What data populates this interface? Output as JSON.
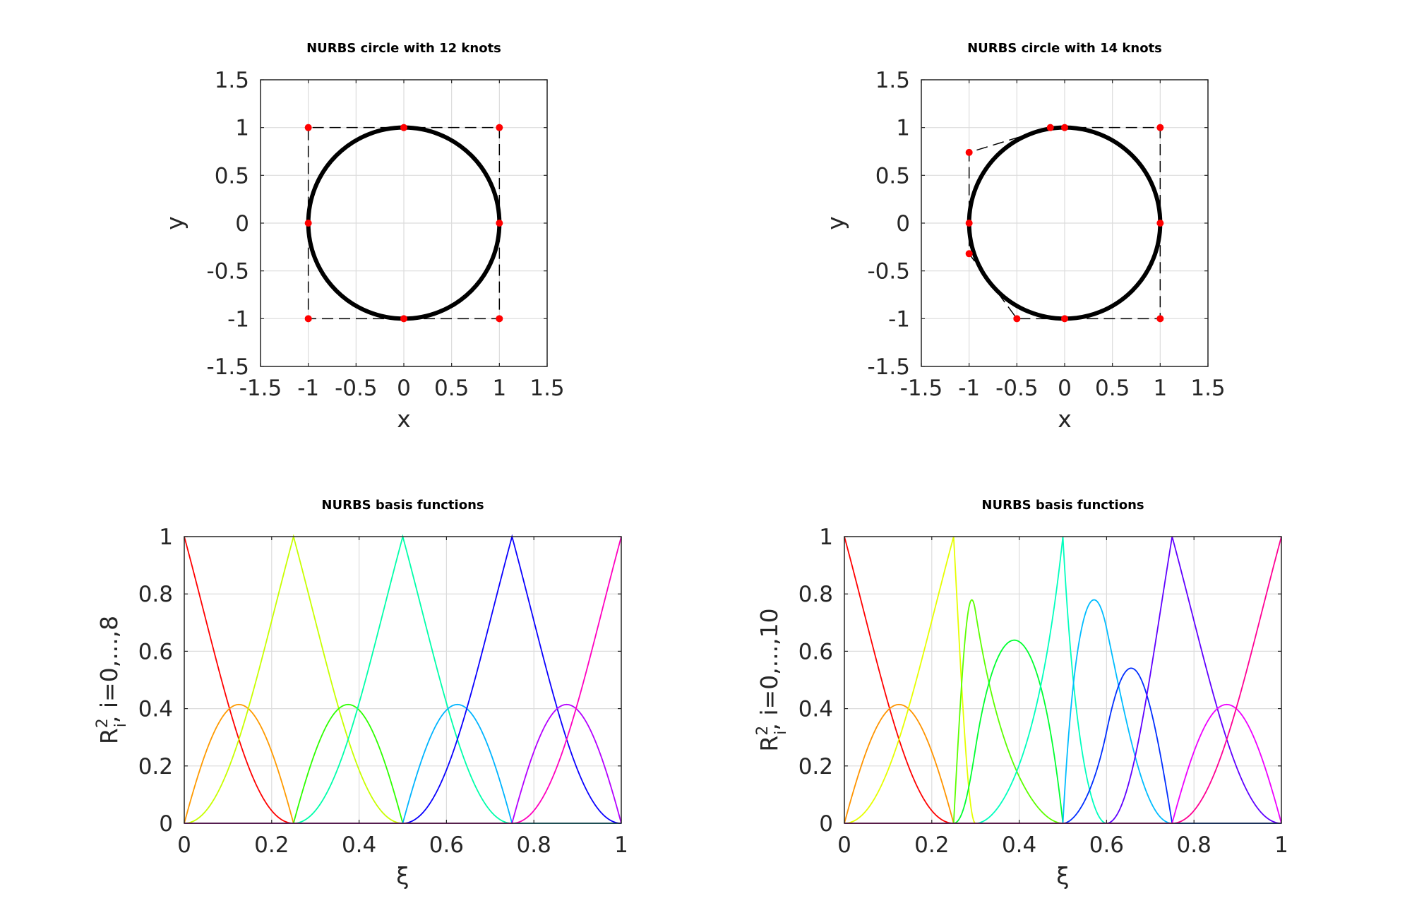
{
  "chart_data": [
    {
      "type": "line",
      "title": "NURBS circle with 12 knots",
      "xlabel": "x",
      "ylabel": "y",
      "xlim": [
        -1.5,
        1.5
      ],
      "ylim": [
        -1.5,
        1.5
      ],
      "xticks": [
        -1.5,
        -1,
        -0.5,
        0,
        0.5,
        1,
        1.5
      ],
      "yticks": [
        -1.5,
        -1,
        -0.5,
        0,
        0.5,
        1,
        1.5
      ],
      "xtick_labels": [
        "-1.5",
        "-1",
        "-0.5",
        "0",
        "0.5",
        "1",
        "1.5"
      ],
      "ytick_labels": [
        "-1.5",
        "-1",
        "-0.5",
        "0",
        "0.5",
        "1",
        "1.5"
      ],
      "grid": true,
      "curve": {
        "shape": "circle",
        "center": [
          0,
          0
        ],
        "radius": 1,
        "color": "#000000"
      },
      "control_polygon": {
        "x": [
          1,
          1,
          0,
          -1,
          -1,
          -1,
          0,
          1,
          1
        ],
        "y": [
          0,
          1,
          1,
          1,
          0,
          -1,
          -1,
          -1,
          0
        ],
        "style": "dashed",
        "color": "#000000"
      },
      "control_points": {
        "x": [
          1,
          1,
          0,
          -1,
          -1,
          -1,
          0,
          1
        ],
        "y": [
          0,
          1,
          1,
          1,
          0,
          -1,
          -1,
          -1
        ],
        "color": "#ff0000"
      }
    },
    {
      "type": "line",
      "title": "NURBS circle with 14 knots",
      "xlabel": "x",
      "ylabel": "y",
      "xlim": [
        -1.5,
        1.5
      ],
      "ylim": [
        -1.5,
        1.5
      ],
      "xticks": [
        -1.5,
        -1,
        -0.5,
        0,
        0.5,
        1,
        1.5
      ],
      "yticks": [
        -1.5,
        -1,
        -0.5,
        0,
        0.5,
        1,
        1.5
      ],
      "xtick_labels": [
        "-1.5",
        "-1",
        "-0.5",
        "0",
        "0.5",
        "1",
        "1.5"
      ],
      "ytick_labels": [
        "-1.5",
        "-1",
        "-0.5",
        "0",
        "0.5",
        "1",
        "1.5"
      ],
      "grid": true,
      "curve": {
        "shape": "circle",
        "center": [
          0,
          0
        ],
        "radius": 1,
        "color": "#000000"
      },
      "control_polygon": {
        "x": [
          1,
          1,
          0,
          -0.15,
          -1,
          -1,
          -1,
          -0.5,
          0,
          1,
          1
        ],
        "y": [
          0,
          1,
          1,
          1,
          0.74,
          0,
          -0.32,
          -1,
          -1,
          -1,
          0
        ],
        "style": "dashed",
        "color": "#000000"
      },
      "control_points": {
        "x": [
          1,
          1,
          0,
          -0.15,
          -1,
          -1,
          -1,
          -0.5,
          0,
          1
        ],
        "y": [
          0,
          1,
          1,
          1,
          0.74,
          0,
          -0.32,
          -1,
          -1,
          -1
        ],
        "color": "#ff0000"
      }
    },
    {
      "type": "line",
      "title": "NURBS basis functions",
      "xlabel": "ξ",
      "ylabel": "R²ᵢ, i=0,...,8",
      "xlim": [
        0,
        1
      ],
      "ylim": [
        0,
        1
      ],
      "xticks": [
        0,
        0.2,
        0.4,
        0.6,
        0.8,
        1
      ],
      "yticks": [
        0,
        0.2,
        0.4,
        0.6,
        0.8,
        1
      ],
      "xtick_labels": [
        "0",
        "0.2",
        "0.4",
        "0.6",
        "0.8",
        "1"
      ],
      "ytick_labels": [
        "0",
        "0.2",
        "0.4",
        "0.6",
        "0.8",
        "1"
      ],
      "grid": true,
      "knots": [
        0,
        0,
        0,
        0.25,
        0.25,
        0.5,
        0.5,
        0.75,
        0.75,
        1,
        1,
        1
      ],
      "weights": [
        1,
        0.7071,
        1,
        0.7071,
        1,
        0.7071,
        1,
        0.7071,
        1
      ],
      "series": [
        {
          "color": "#ff0000"
        },
        {
          "color": "#ff9a00"
        },
        {
          "color": "#c8ff00"
        },
        {
          "color": "#2eff00"
        },
        {
          "color": "#00ffaa"
        },
        {
          "color": "#00b4ff"
        },
        {
          "color": "#0a00ff"
        },
        {
          "color": "#b400ff"
        },
        {
          "color": "#ff00bf"
        }
      ]
    },
    {
      "type": "line",
      "title": "NURBS basis functions",
      "xlabel": "ξ",
      "ylabel": "R²ᵢ, i=0,...,10",
      "xlim": [
        0,
        1
      ],
      "ylim": [
        0,
        1
      ],
      "xticks": [
        0,
        0.2,
        0.4,
        0.6,
        0.8,
        1
      ],
      "yticks": [
        0,
        0.2,
        0.4,
        0.6,
        0.8,
        1
      ],
      "xtick_labels": [
        "0",
        "0.2",
        "0.4",
        "0.6",
        "0.8",
        "1"
      ],
      "ytick_labels": [
        "0",
        "0.2",
        "0.4",
        "0.6",
        "0.8",
        "1"
      ],
      "grid": true,
      "knots": [
        0,
        0,
        0,
        0.25,
        0.25,
        0.3,
        0.5,
        0.5,
        0.6,
        0.75,
        0.75,
        1,
        1,
        1
      ],
      "weights": [
        1,
        0.7071,
        1,
        0.7071,
        1,
        0.7071,
        1,
        0.7071,
        1,
        0.7071,
        1
      ],
      "series": [
        {
          "color": "#ff0000"
        },
        {
          "color": "#ff9400"
        },
        {
          "color": "#e6ff00"
        },
        {
          "color": "#5cff00"
        },
        {
          "color": "#00ff30"
        },
        {
          "color": "#00ffbe"
        },
        {
          "color": "#00bcff"
        },
        {
          "color": "#002eff"
        },
        {
          "color": "#6000ff"
        },
        {
          "color": "#ee00ff"
        },
        {
          "color": "#ff0094"
        }
      ]
    }
  ]
}
